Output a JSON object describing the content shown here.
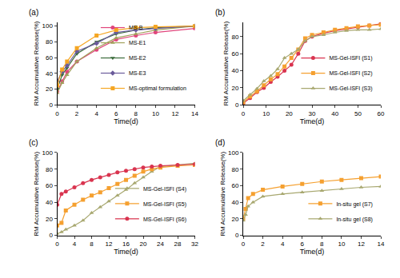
{
  "chart_data": [
    {
      "type": "line",
      "title": "(a)",
      "x_label": "Time(d)",
      "y_label": "RM Accumulative Release(%)",
      "xlim": [
        0,
        14
      ],
      "xticks": [
        0,
        2,
        4,
        6,
        8,
        10,
        12,
        14
      ],
      "ylim": [
        0,
        105
      ],
      "yticks": [
        0,
        20,
        40,
        60,
        80,
        100
      ],
      "legend": "lower right",
      "x": [
        0,
        0.5,
        1,
        2,
        4,
        6,
        8,
        10,
        14
      ],
      "series": [
        {
          "name": "MS-B",
          "color": "#e0457b",
          "marker": "circle",
          "values": [
            17,
            30,
            42,
            55,
            70,
            83,
            88,
            92,
            97
          ]
        },
        {
          "name": "MS-E1",
          "color": "#a0a05a",
          "marker": "triangle-up",
          "values": [
            15,
            28,
            38,
            55,
            72,
            85,
            90,
            95,
            100
          ]
        },
        {
          "name": "MS-E2",
          "color": "#3a6b3a",
          "marker": "triangle-down",
          "values": [
            20,
            38,
            47,
            65,
            80,
            90,
            95,
            98,
            100
          ]
        },
        {
          "name": "MS-E3",
          "color": "#6a5a9a",
          "marker": "diamond",
          "values": [
            30,
            42,
            50,
            68,
            78,
            92,
            95,
            97,
            100
          ]
        },
        {
          "name": "MS-optimal formulation",
          "color": "#f5a623",
          "marker": "square",
          "values": [
            25,
            45,
            55,
            72,
            88,
            95,
            98,
            99,
            100
          ]
        }
      ]
    },
    {
      "type": "line",
      "title": "(b)",
      "x_label": "Time(d)",
      "y_label": "RM Accumulative Release(%)",
      "xlim": [
        0,
        60
      ],
      "xticks": [
        0,
        10,
        20,
        30,
        40,
        50,
        60
      ],
      "ylim": [
        0,
        97
      ],
      "yticks": [
        0,
        20,
        40,
        60,
        80
      ],
      "legend": "lower right",
      "x": [
        0,
        3,
        6,
        9,
        12,
        15,
        18,
        21,
        24,
        27,
        30,
        35,
        40,
        45,
        50,
        55,
        60
      ],
      "series": [
        {
          "name": "MS-Gel-ISFI (S1)",
          "color": "#d9344f",
          "marker": "circle",
          "values": [
            2,
            8,
            15,
            20,
            27,
            33,
            40,
            47,
            60,
            75,
            80,
            84,
            87,
            89,
            91,
            93,
            95
          ]
        },
        {
          "name": "MS-Gel-ISFI (S2)",
          "color": "#f5a030",
          "marker": "square",
          "values": [
            3,
            10,
            16,
            23,
            30,
            36,
            45,
            55,
            65,
            78,
            82,
            85,
            88,
            90,
            92,
            93,
            94
          ]
        },
        {
          "name": "MS-Gel-ISFI (S3)",
          "color": "#a8a870",
          "marker": "triangle-up",
          "values": [
            5,
            12,
            19,
            28,
            34,
            42,
            55,
            60,
            65,
            75,
            80,
            82,
            85,
            87,
            88,
            88,
            89
          ]
        }
      ]
    },
    {
      "type": "line",
      "title": "(c)",
      "x_label": "Time(d)",
      "y_label": "RM Accumulative Release(%)",
      "xlim": [
        0,
        32
      ],
      "xticks": [
        0,
        4,
        8,
        12,
        16,
        20,
        24,
        28,
        32
      ],
      "ylim": [
        0,
        100
      ],
      "yticks": [
        0,
        20,
        40,
        60,
        80,
        100
      ],
      "legend": "lower right",
      "x": [
        0,
        1,
        2,
        4,
        6,
        8,
        10,
        12,
        14,
        16,
        18,
        20,
        22,
        24,
        28,
        32
      ],
      "series": [
        {
          "name": "MS-Gel-ISFI (S4)",
          "color": "#a8a870",
          "marker": "triangle-up",
          "values": [
            2,
            4,
            7,
            12,
            18,
            27,
            34,
            41,
            48,
            55,
            63,
            70,
            77,
            83,
            85,
            87
          ]
        },
        {
          "name": "MS-Gel-ISFI (S5)",
          "color": "#f5a030",
          "marker": "square",
          "values": [
            12,
            15,
            30,
            37,
            43,
            48,
            52,
            57,
            62,
            67,
            72,
            77,
            80,
            82,
            84,
            85
          ]
        },
        {
          "name": "MS-Gel-ISFI (S6)",
          "color": "#d9344f",
          "marker": "circle",
          "values": [
            37,
            50,
            53,
            58,
            63,
            67,
            70,
            73,
            76,
            78,
            80,
            82,
            83,
            84,
            85,
            86
          ]
        }
      ]
    },
    {
      "type": "line",
      "title": "(d)",
      "x_label": "Time(d)",
      "y_label": "RM Accumulative Release(%)",
      "xlim": [
        0,
        14
      ],
      "xticks": [
        0,
        2,
        4,
        6,
        8,
        10,
        12,
        14
      ],
      "ylim": [
        0,
        100
      ],
      "yticks": [
        0,
        20,
        40,
        60,
        80,
        100
      ],
      "legend": "lower right",
      "x": [
        0,
        0.25,
        0.5,
        1,
        2,
        4,
        6,
        8,
        10,
        12,
        14
      ],
      "series": [
        {
          "name": "In-situ gel (S7)",
          "color": "#f5a030",
          "marker": "square",
          "values": [
            20,
            32,
            45,
            50,
            55,
            59,
            62,
            65,
            67,
            69,
            71
          ]
        },
        {
          "name": "In-situ gel (S8)",
          "color": "#a8a870",
          "marker": "triangle-up",
          "values": [
            18,
            25,
            35,
            40,
            47,
            50,
            52,
            54,
            56,
            58,
            59
          ]
        }
      ]
    }
  ]
}
